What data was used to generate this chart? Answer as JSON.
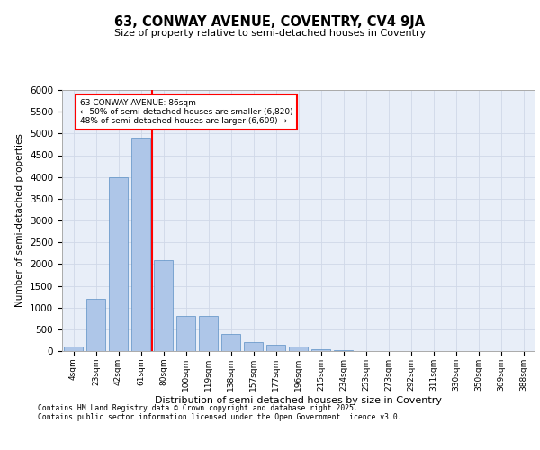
{
  "title": "63, CONWAY AVENUE, COVENTRY, CV4 9JA",
  "subtitle": "Size of property relative to semi-detached houses in Coventry",
  "xlabel": "Distribution of semi-detached houses by size in Coventry",
  "ylabel": "Number of semi-detached properties",
  "property_label": "63 CONWAY AVENUE: 86sqm",
  "smaller_pct": "50%",
  "smaller_count": "6,820",
  "larger_pct": "48%",
  "larger_count": "6,609",
  "bin_labels": [
    "4sqm",
    "23sqm",
    "42sqm",
    "61sqm",
    "80sqm",
    "100sqm",
    "119sqm",
    "138sqm",
    "157sqm",
    "177sqm",
    "196sqm",
    "215sqm",
    "234sqm",
    "253sqm",
    "273sqm",
    "292sqm",
    "311sqm",
    "330sqm",
    "350sqm",
    "369sqm",
    "388sqm"
  ],
  "bar_values": [
    100,
    1200,
    4000,
    4900,
    2100,
    800,
    800,
    400,
    200,
    150,
    100,
    50,
    20,
    10,
    5,
    3,
    2,
    1,
    1,
    1,
    0
  ],
  "bar_color": "#aec6e8",
  "bar_edge_color": "#5a8fc4",
  "vline_color": "red",
  "vline_x": 3.5,
  "grid_color": "#d0d8e8",
  "background_color": "#e8eef8",
  "footer_line1": "Contains HM Land Registry data © Crown copyright and database right 2025.",
  "footer_line2": "Contains public sector information licensed under the Open Government Licence v3.0.",
  "ylim": [
    0,
    6000
  ],
  "yticks": [
    0,
    500,
    1000,
    1500,
    2000,
    2500,
    3000,
    3500,
    4000,
    4500,
    5000,
    5500,
    6000
  ]
}
